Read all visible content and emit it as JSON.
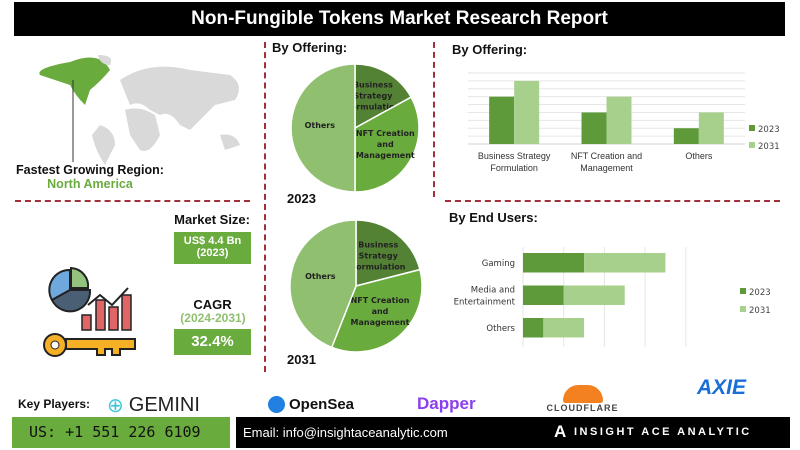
{
  "title": "Non-Fungible Tokens Market Research Report",
  "region": {
    "label": "Fastest Growing Region:",
    "value": "North America"
  },
  "market_size": {
    "label": "Market Size:",
    "value": "US$ 4.4 Bn",
    "year": "(2023)"
  },
  "cagr": {
    "label": "CAGR",
    "period": "(2024-2031)",
    "value": "32.4%"
  },
  "colors": {
    "dark_green": "#5e9a3a",
    "light_green": "#a8d08d",
    "mid_green": "#6aab3e",
    "accent_red": "#a0303a"
  },
  "chart_data": [
    {
      "type": "pie",
      "title": "By Offering:",
      "label": "2023",
      "categories": [
        "Business Strategy Formulation",
        "NFT Creation and Management",
        "Others"
      ],
      "values": [
        17,
        33,
        50
      ]
    },
    {
      "type": "pie",
      "label": "2031",
      "categories": [
        "Business Strategy Formulation",
        "NFT Creation and Management",
        "Others"
      ],
      "values": [
        21,
        35,
        44
      ]
    },
    {
      "type": "bar",
      "title": "By Offering:",
      "categories": [
        "Business Strategy Formulation",
        "NFT Creation and Management",
        "Others"
      ],
      "series": [
        {
          "name": "2023",
          "values": [
            6,
            4,
            2
          ]
        },
        {
          "name": "2031",
          "values": [
            8,
            6,
            4
          ]
        }
      ],
      "ylim": [
        0,
        9
      ],
      "grid": true,
      "legend": "right"
    },
    {
      "type": "bar",
      "orientation": "horizontal",
      "stacked": true,
      "title": "By End Users:",
      "categories": [
        "Gaming",
        "Media and Entertainment",
        "Others"
      ],
      "series": [
        {
          "name": "2023",
          "values": [
            1.5,
            1.0,
            0.5
          ]
        },
        {
          "name": "2031",
          "values": [
            2.0,
            1.5,
            1.0
          ]
        }
      ],
      "xlim": [
        0,
        4
      ],
      "grid": true,
      "legend": "right"
    }
  ],
  "footer": {
    "key_players_label": "Key Players:",
    "players": [
      "GEMINI",
      "OpenSea",
      "Dapper",
      "CLOUDFLARE",
      "AXIE"
    ],
    "phone": "US: +1 551 226 6109",
    "email": "Email: info@insightaceanalytic.com",
    "brand": "INSIGHT ACE ANALYTIC"
  }
}
